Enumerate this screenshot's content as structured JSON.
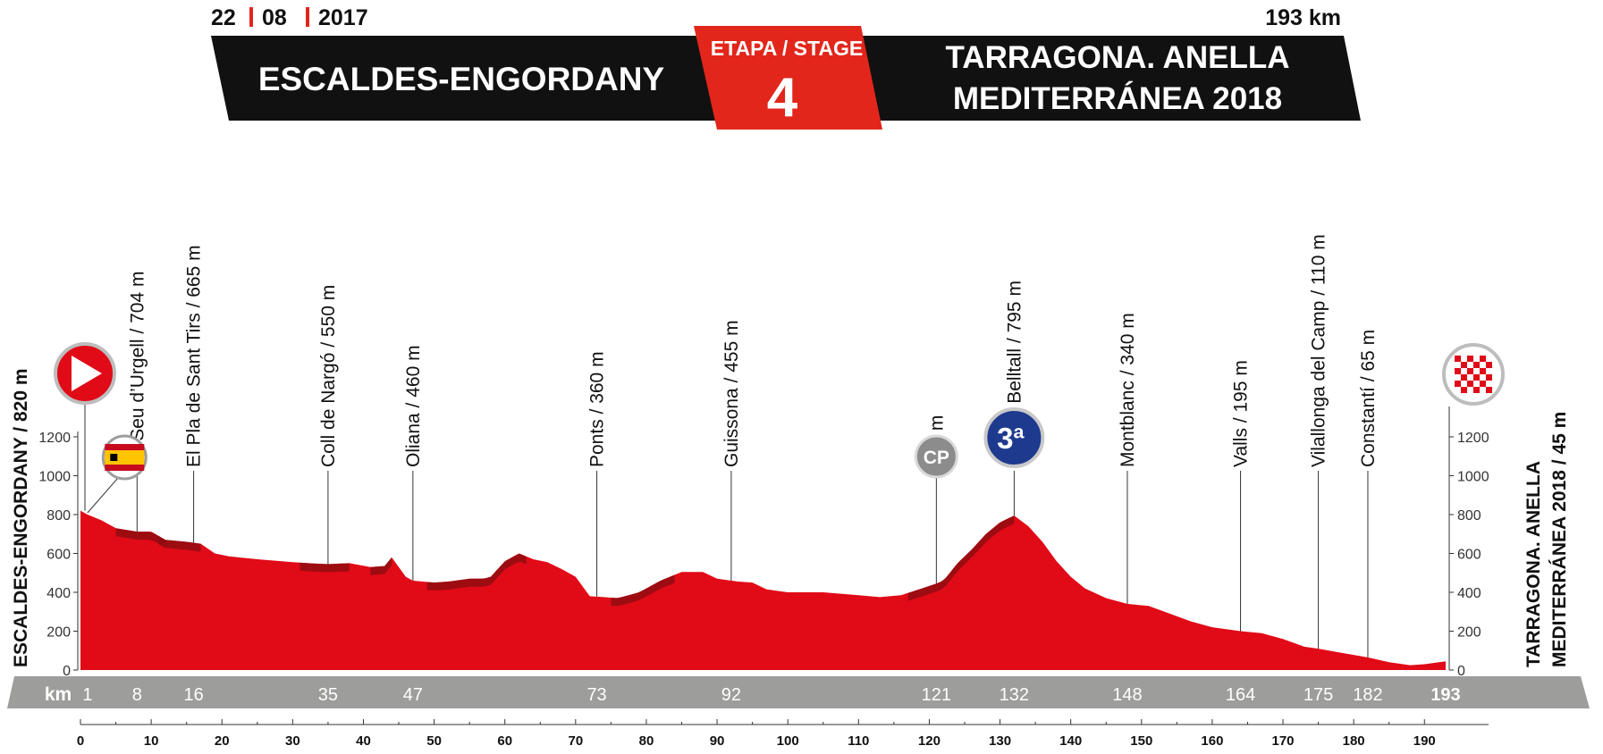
{
  "header": {
    "date_day": "22",
    "date_month": "08",
    "date_year": "2017",
    "distance": "193 km",
    "start_town": "ESCALDES-ENGORDANY",
    "stage_label": "ETAPA / STAGE",
    "stage_number": "4",
    "finish_line1": "TARRAGONA. ANELLA",
    "finish_line2": "MEDITERRÁNEA 2018",
    "bar_color": "#111111",
    "stage_color": "#e2261b"
  },
  "chart_data": {
    "type": "area",
    "title": "",
    "xlabel": "km",
    "ylabel": "",
    "xlim": [
      0,
      193
    ],
    "ylim": [
      0,
      1200
    ],
    "yticks": [
      0,
      200,
      400,
      600,
      800,
      1000,
      1200
    ],
    "xticks": [
      0,
      10,
      20,
      30,
      40,
      50,
      60,
      70,
      80,
      90,
      100,
      110,
      120,
      130,
      140,
      150,
      160,
      170,
      180,
      190
    ],
    "fill_color": "#e10a17",
    "climb_color": "#8f0d10",
    "axis_color": "#9d9d9c",
    "start_label": "ESCALDES-ENGORDANY / 820 m",
    "finish_label_line1": "TARRAGONA. ANELLA",
    "finish_label_line2": "MEDITERRÁNEA 2018 / 45 m",
    "km_strip_label": "km",
    "profile": [
      [
        0,
        820
      ],
      [
        1,
        800
      ],
      [
        3,
        770
      ],
      [
        5,
        730
      ],
      [
        8,
        712
      ],
      [
        10,
        712
      ],
      [
        12,
        670
      ],
      [
        15,
        660
      ],
      [
        17,
        650
      ],
      [
        19,
        600
      ],
      [
        21,
        585
      ],
      [
        25,
        570
      ],
      [
        30,
        555
      ],
      [
        33,
        548
      ],
      [
        35,
        545
      ],
      [
        38,
        550
      ],
      [
        41,
        530
      ],
      [
        43,
        535
      ],
      [
        44,
        580
      ],
      [
        46,
        480
      ],
      [
        47,
        460
      ],
      [
        50,
        450
      ],
      [
        52,
        455
      ],
      [
        55,
        470
      ],
      [
        57,
        470
      ],
      [
        58,
        480
      ],
      [
        60,
        560
      ],
      [
        62,
        600
      ],
      [
        64,
        570
      ],
      [
        66,
        555
      ],
      [
        68,
        520
      ],
      [
        70,
        480
      ],
      [
        72,
        380
      ],
      [
        74,
        375
      ],
      [
        76,
        370
      ],
      [
        79,
        400
      ],
      [
        82,
        460
      ],
      [
        85,
        505
      ],
      [
        88,
        505
      ],
      [
        90,
        470
      ],
      [
        93,
        455
      ],
      [
        95,
        450
      ],
      [
        97,
        415
      ],
      [
        100,
        400
      ],
      [
        105,
        400
      ],
      [
        110,
        385
      ],
      [
        113,
        375
      ],
      [
        116,
        385
      ],
      [
        119,
        420
      ],
      [
        121,
        445
      ],
      [
        122,
        460
      ],
      [
        124,
        550
      ],
      [
        126,
        620
      ],
      [
        128,
        700
      ],
      [
        130,
        760
      ],
      [
        132,
        795
      ],
      [
        134,
        740
      ],
      [
        136,
        660
      ],
      [
        138,
        560
      ],
      [
        140,
        480
      ],
      [
        142,
        420
      ],
      [
        145,
        370
      ],
      [
        148,
        340
      ],
      [
        151,
        330
      ],
      [
        154,
        290
      ],
      [
        157,
        250
      ],
      [
        160,
        220
      ],
      [
        164,
        200
      ],
      [
        167,
        190
      ],
      [
        170,
        160
      ],
      [
        173,
        120
      ],
      [
        175,
        110
      ],
      [
        178,
        90
      ],
      [
        182,
        65
      ],
      [
        185,
        40
      ],
      [
        188,
        25
      ],
      [
        190,
        30
      ],
      [
        193,
        45
      ]
    ],
    "climbs": [
      [
        5,
        12
      ],
      [
        11,
        17
      ],
      [
        31,
        38
      ],
      [
        41,
        44
      ],
      [
        49,
        58
      ],
      [
        58,
        63
      ],
      [
        75,
        84
      ],
      [
        117,
        125
      ],
      [
        125,
        132
      ]
    ],
    "waypoints": [
      {
        "km": 1,
        "label": "",
        "km_label": "1",
        "icon": "spain-flag-icon"
      },
      {
        "km": 8,
        "label": "La Seu d’Urgell / 704 m",
        "km_label": "8"
      },
      {
        "km": 16,
        "label": "El Pla de Sant Tirs / 665 m",
        "km_label": "16"
      },
      {
        "km": 35,
        "label": "Coll de Nargó / 550 m",
        "km_label": "35"
      },
      {
        "km": 47,
        "label": "Oliana / 460 m",
        "km_label": "47"
      },
      {
        "km": 73,
        "label": "Ponts / 360 m",
        "km_label": "73"
      },
      {
        "km": 92,
        "label": "Guissona / 455 m",
        "km_label": "92"
      },
      {
        "km": 121,
        "label": "445 m",
        "km_label": "121",
        "icon": "cp-checkpoint-icon",
        "badge": "CP"
      },
      {
        "km": 132,
        "label": "Alto de Belltall / 795 m",
        "km_label": "132",
        "icon": "category-3-climb-icon",
        "badge": "3ª"
      },
      {
        "km": 148,
        "label": "Montblanc / 340 m",
        "km_label": "148"
      },
      {
        "km": 164,
        "label": "Valls / 195 m",
        "km_label": "164"
      },
      {
        "km": 175,
        "label": "Vilallonga del Camp / 110 m",
        "km_label": "175"
      },
      {
        "km": 182,
        "label": "Constantí / 65 m",
        "km_label": "182"
      },
      {
        "km": 193,
        "label": "",
        "km_label": "193",
        "icon": "finish-flag-icon"
      }
    ]
  }
}
